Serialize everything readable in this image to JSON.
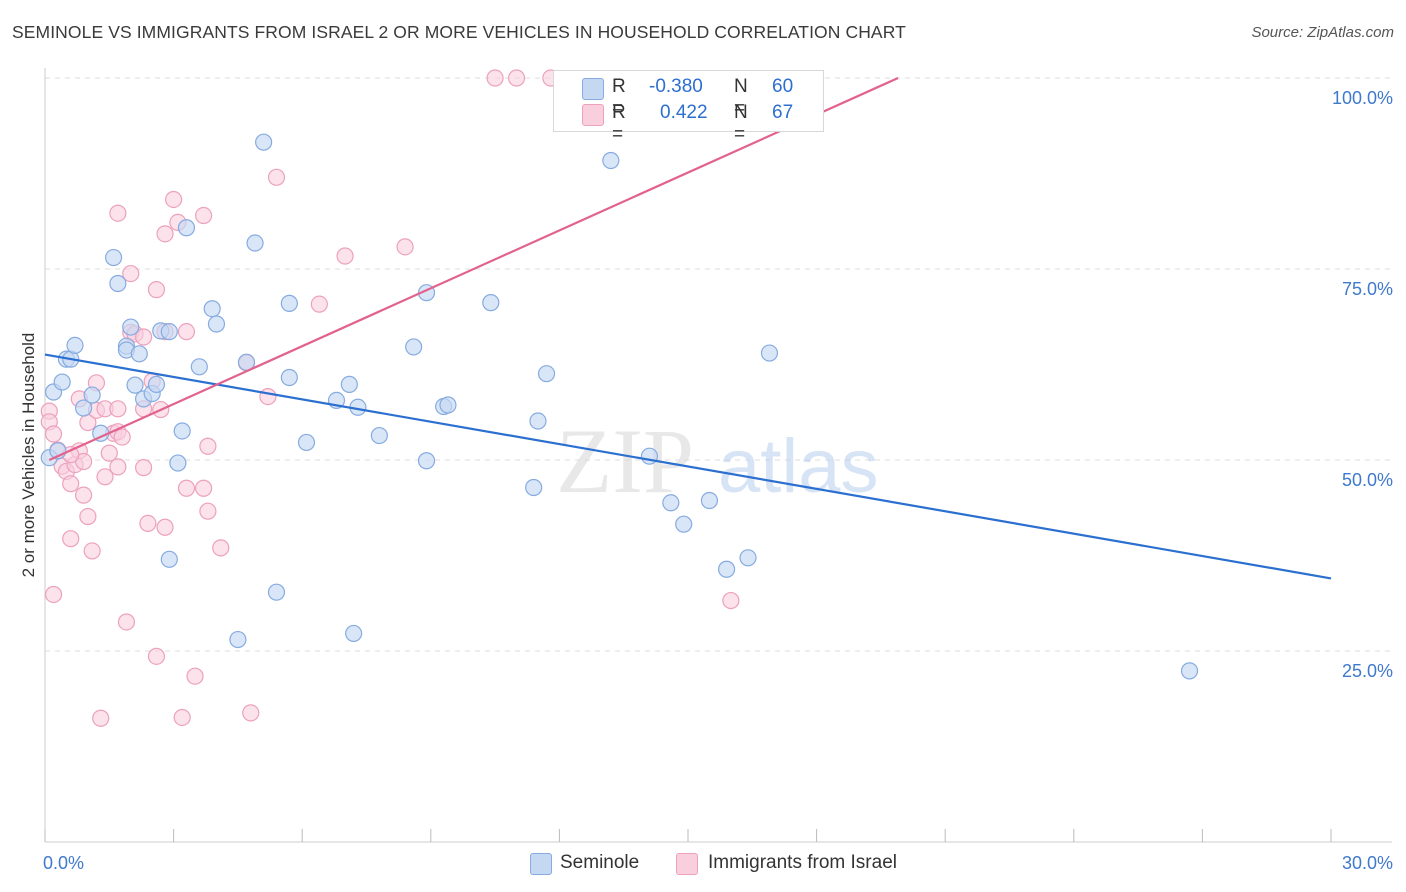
{
  "title": "SEMINOLE VS IMMIGRANTS FROM ISRAEL 2 OR MORE VEHICLES IN HOUSEHOLD CORRELATION CHART",
  "source": "Source: ZipAtlas.com",
  "watermark": {
    "zip": "ZIP",
    "atlas": "atlas"
  },
  "legend": {
    "r_label": "R =",
    "n_label": "N =",
    "series1": {
      "r": "-0.380",
      "n": "60"
    },
    "series2": {
      "r": "0.422",
      "n": "67"
    }
  },
  "colors": {
    "blue_fill": "#c4d8f2",
    "blue_stroke": "#86abe0",
    "blue_line": "#2b6fd0",
    "pink_fill": "#f9cedd",
    "pink_stroke": "#eda1bd",
    "pink_line": "#e2628d",
    "tick_label": "#3f79cc",
    "grid": "#dddddd"
  },
  "chart_data": {
    "type": "scatter",
    "title": "SEMINOLE VS IMMIGRANTS FROM ISRAEL 2 OR MORE VEHICLES IN HOUSEHOLD CORRELATION CHART",
    "xlabel": "",
    "ylabel": "2 or more Vehicles in Household",
    "xlim": [
      0,
      30
    ],
    "ylim": [
      0,
      100
    ],
    "x_tick_labels": {
      "min": "0.0%",
      "max": "30.0%"
    },
    "y_ticks": [
      {
        "value": 25,
        "label": "25.0%"
      },
      {
        "value": 50,
        "label": "50.0%"
      },
      {
        "value": 75,
        "label": "75.0%"
      },
      {
        "value": 100,
        "label": "100.0%"
      }
    ],
    "x_minor_ticks": [
      0,
      3,
      6,
      9,
      12,
      15,
      18,
      21,
      24,
      27,
      30
    ],
    "series": [
      {
        "name": "Seminole",
        "trend": {
          "x0": 0,
          "y0": 63.8,
          "x1": 30,
          "y1": 34.5
        },
        "points": [
          [
            0.2,
            58.9
          ],
          [
            0.4,
            60.2
          ],
          [
            0.5,
            63.2
          ],
          [
            0.6,
            63.2
          ],
          [
            0.7,
            65.0
          ],
          [
            0.9,
            56.8
          ],
          [
            1.1,
            58.5
          ],
          [
            1.3,
            53.5
          ],
          [
            1.6,
            76.5
          ],
          [
            1.7,
            73.1
          ],
          [
            1.9,
            64.9
          ],
          [
            1.9,
            64.4
          ],
          [
            2.0,
            67.4
          ],
          [
            2.1,
            59.8
          ],
          [
            2.2,
            63.9
          ],
          [
            2.3,
            58.0
          ],
          [
            2.5,
            58.7
          ],
          [
            2.6,
            59.9
          ],
          [
            2.7,
            66.9
          ],
          [
            2.9,
            66.8
          ],
          [
            2.9,
            37.0
          ],
          [
            3.1,
            49.6
          ],
          [
            3.2,
            53.8
          ],
          [
            3.3,
            80.4
          ],
          [
            3.6,
            62.2
          ],
          [
            3.9,
            69.8
          ],
          [
            4.0,
            67.8
          ],
          [
            4.5,
            26.5
          ],
          [
            4.7,
            62.8
          ],
          [
            4.9,
            78.4
          ],
          [
            5.1,
            91.6
          ],
          [
            5.4,
            32.7
          ],
          [
            5.7,
            60.8
          ],
          [
            5.7,
            70.5
          ],
          [
            6.1,
            52.3
          ],
          [
            6.8,
            57.8
          ],
          [
            7.1,
            59.9
          ],
          [
            7.2,
            27.3
          ],
          [
            7.3,
            56.9
          ],
          [
            7.8,
            53.2
          ],
          [
            8.6,
            64.8
          ],
          [
            8.9,
            49.9
          ],
          [
            8.9,
            71.9
          ],
          [
            9.3,
            57.0
          ],
          [
            9.4,
            57.2
          ],
          [
            10.4,
            70.6
          ],
          [
            11.4,
            46.4
          ],
          [
            11.5,
            55.1
          ],
          [
            11.7,
            61.3
          ],
          [
            13.2,
            89.2
          ],
          [
            14.1,
            50.5
          ],
          [
            14.6,
            44.4
          ],
          [
            14.9,
            41.6
          ],
          [
            15.5,
            44.7
          ],
          [
            15.9,
            35.7
          ],
          [
            16.4,
            37.2
          ],
          [
            16.9,
            64.0
          ],
          [
            26.7,
            22.4
          ],
          [
            0.1,
            50.3
          ],
          [
            0.3,
            51.2
          ]
        ]
      },
      {
        "name": "Immigrants from Israel",
        "trend": {
          "x0": 0.1,
          "y0": 50.0,
          "x1": 19.9,
          "y1": 100.0
        },
        "points": [
          [
            0.1,
            56.4
          ],
          [
            0.1,
            55.0
          ],
          [
            0.2,
            53.4
          ],
          [
            0.3,
            51.3
          ],
          [
            0.4,
            49.2
          ],
          [
            0.5,
            48.5
          ],
          [
            0.6,
            39.7
          ],
          [
            0.6,
            46.9
          ],
          [
            0.7,
            49.4
          ],
          [
            0.8,
            51.2
          ],
          [
            0.8,
            58.0
          ],
          [
            0.9,
            49.8
          ],
          [
            1.0,
            42.6
          ],
          [
            1.0,
            54.9
          ],
          [
            1.1,
            38.1
          ],
          [
            1.2,
            60.1
          ],
          [
            1.2,
            56.5
          ],
          [
            1.3,
            16.2
          ],
          [
            1.4,
            56.7
          ],
          [
            1.4,
            47.8
          ],
          [
            1.5,
            50.9
          ],
          [
            1.6,
            53.5
          ],
          [
            1.7,
            49.1
          ],
          [
            1.7,
            56.7
          ],
          [
            1.7,
            53.7
          ],
          [
            1.7,
            82.3
          ],
          [
            1.8,
            53.0
          ],
          [
            1.9,
            28.8
          ],
          [
            2.0,
            74.4
          ],
          [
            2.0,
            66.7
          ],
          [
            2.1,
            66.5
          ],
          [
            2.3,
            49.0
          ],
          [
            2.3,
            66.1
          ],
          [
            2.3,
            56.7
          ],
          [
            2.4,
            41.7
          ],
          [
            2.5,
            60.3
          ],
          [
            2.6,
            72.3
          ],
          [
            2.6,
            24.3
          ],
          [
            2.7,
            56.6
          ],
          [
            2.8,
            79.6
          ],
          [
            2.8,
            41.2
          ],
          [
            2.8,
            66.8
          ],
          [
            3.0,
            84.1
          ],
          [
            3.1,
            81.1
          ],
          [
            3.2,
            16.3
          ],
          [
            3.3,
            66.8
          ],
          [
            3.3,
            46.3
          ],
          [
            3.5,
            21.7
          ],
          [
            3.7,
            82.0
          ],
          [
            3.7,
            46.3
          ],
          [
            3.8,
            43.3
          ],
          [
            3.8,
            51.8
          ],
          [
            4.1,
            38.5
          ],
          [
            4.7,
            62.7
          ],
          [
            4.8,
            16.9
          ],
          [
            5.2,
            58.3
          ],
          [
            5.4,
            87.0
          ],
          [
            6.4,
            70.4
          ],
          [
            7.0,
            76.7
          ],
          [
            8.4,
            77.9
          ],
          [
            10.5,
            100.0
          ],
          [
            11.0,
            100.0
          ],
          [
            11.8,
            100.0
          ],
          [
            16.0,
            31.6
          ],
          [
            0.2,
            32.4
          ],
          [
            0.9,
            45.4
          ],
          [
            0.6,
            50.7
          ]
        ]
      }
    ]
  }
}
